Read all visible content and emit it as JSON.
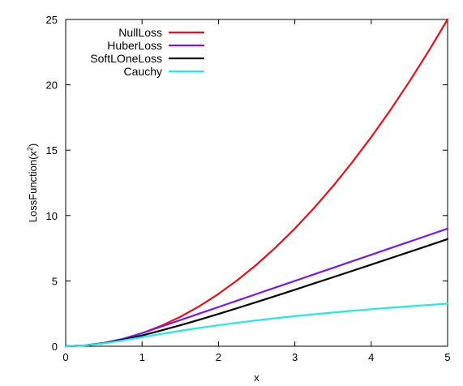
{
  "chart_data": {
    "type": "line",
    "xlabel": "x",
    "ylabel": "LossFunction(x",
    "ylabel_superscript": "2",
    "ylabel_suffix": ")",
    "xlim": [
      0,
      5
    ],
    "ylim": [
      0,
      25
    ],
    "xticks": [
      0,
      1,
      2,
      3,
      4,
      5
    ],
    "yticks": [
      0,
      5,
      10,
      15,
      20,
      25
    ],
    "grid": false,
    "legend_position": "top-left",
    "x": [
      0,
      0.25,
      0.5,
      0.75,
      1,
      1.25,
      1.5,
      1.75,
      2,
      2.25,
      2.5,
      2.75,
      3,
      3.25,
      3.5,
      3.75,
      4,
      4.25,
      4.5,
      4.75,
      5
    ],
    "series": [
      {
        "name": "NullLoss",
        "color": "#e8101a",
        "values": [
          0,
          0.0625,
          0.25,
          0.5625,
          1,
          1.5625,
          2.25,
          3.0625,
          4,
          5.0625,
          6.25,
          7.5625,
          9,
          10.5625,
          12.25,
          14.0625,
          16,
          18.0625,
          20.25,
          22.5625,
          25
        ]
      },
      {
        "name": "HuberLoss",
        "color": "#7b18e8",
        "values": [
          0,
          0.0625,
          0.25,
          0.5625,
          1,
          1.5,
          2,
          2.5,
          3,
          3.5,
          4,
          4.5,
          5,
          5.5,
          6,
          6.5,
          7,
          7.5,
          8,
          8.5,
          9
        ]
      },
      {
        "name": "SoftLOneLoss",
        "color": "#000000",
        "values": [
          0,
          0.062,
          0.236,
          0.5,
          0.828,
          1.202,
          1.606,
          2.03,
          2.472,
          2.924,
          3.385,
          3.853,
          4.325,
          4.802,
          5.28,
          5.761,
          6.246,
          6.731,
          7.217,
          7.705,
          8.198
        ]
      },
      {
        "name": "Cauchy",
        "color": "#22e8e8",
        "values": [
          0,
          0.061,
          0.223,
          0.446,
          0.693,
          0.94,
          1.179,
          1.405,
          1.609,
          1.801,
          1.981,
          2.148,
          2.303,
          2.448,
          2.584,
          2.712,
          2.833,
          2.948,
          3.057,
          3.159,
          3.258
        ]
      }
    ]
  }
}
